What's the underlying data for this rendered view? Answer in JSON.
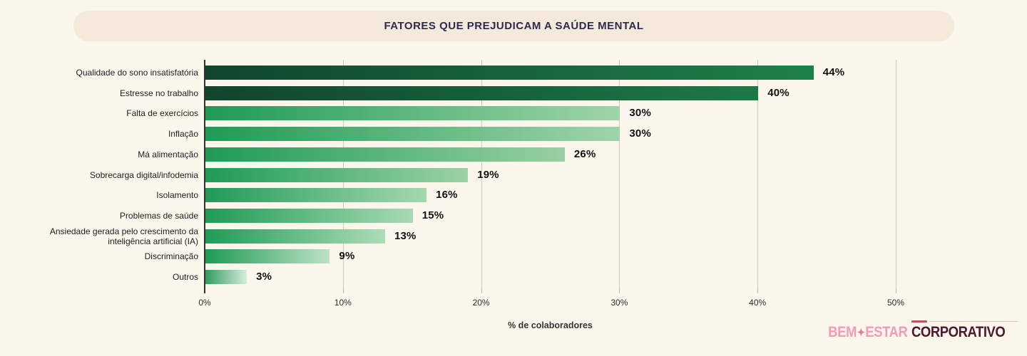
{
  "page": {
    "background": "#FBF7EC"
  },
  "header": {
    "title": "FATORES QUE PREJUDICAM A SAÚDE MENTAL",
    "banner_bg": "#F4E9DA",
    "title_color": "#2E2A4F"
  },
  "chart_data": {
    "type": "bar",
    "orientation": "horizontal",
    "title": "FATORES QUE PREJUDICAM A SAÚDE MENTAL",
    "xlabel": "% de colaboradores",
    "xlim": [
      0,
      50
    ],
    "grid": "vertical",
    "value_suffix": "%",
    "xticks": [
      {
        "value": 0,
        "label": "0%"
      },
      {
        "value": 10,
        "label": "10%"
      },
      {
        "value": 20,
        "label": "20%"
      },
      {
        "value": 30,
        "label": "30%"
      },
      {
        "value": 40,
        "label": "40%"
      },
      {
        "value": 50,
        "label": "50%"
      }
    ],
    "categories": [
      "Qualidade do sono insatisfatória",
      "Estresse no trabalho",
      "Falta de exercícios",
      "Inflação",
      "Má alimentação",
      "Sobrecarga digital/infodemia",
      "Isolamento",
      "Problemas de saúde",
      "Ansiedade gerada pelo crescimento da inteligência artificial (IA)",
      "Discriminação",
      "Outros"
    ],
    "values": [
      44,
      40,
      30,
      30,
      26,
      19,
      16,
      15,
      13,
      9,
      3
    ],
    "items": [
      {
        "label": "Qualidade do sono insatisfatória",
        "value": 44,
        "value_label": "44%",
        "bar_start": "#11452F",
        "bar_end": "#1E8149"
      },
      {
        "label": "Estresse no trabalho",
        "value": 40,
        "value_label": "40%",
        "bar_start": "#11452F",
        "bar_end": "#1C7A45"
      },
      {
        "label": "Falta de exercícios",
        "value": 30,
        "value_label": "30%",
        "bar_start": "#1F9B57",
        "bar_end": "#9FD4A9"
      },
      {
        "label": "Inflação",
        "value": 30,
        "value_label": "30%",
        "bar_start": "#1F9B57",
        "bar_end": "#9FD4A9"
      },
      {
        "label": "Má alimentação",
        "value": 26,
        "value_label": "26%",
        "bar_start": "#1F9B57",
        "bar_end": "#97D0A3"
      },
      {
        "label": "Sobrecarga digital/infodemia",
        "value": 19,
        "value_label": "19%",
        "bar_start": "#1F9B57",
        "bar_end": "#9BD2A6"
      },
      {
        "label": "Isolamento",
        "value": 16,
        "value_label": "16%",
        "bar_start": "#1F9B57",
        "bar_end": "#A5D8AF"
      },
      {
        "label": "Problemas de saúde",
        "value": 15,
        "value_label": "15%",
        "bar_start": "#1F9B57",
        "bar_end": "#A9DAB3"
      },
      {
        "label": "Ansiedade gerada pelo crescimento da inteligência artificial (IA)",
        "value": 13,
        "value_label": "13%",
        "bar_start": "#1F9B57",
        "bar_end": "#ADDCB7"
      },
      {
        "label": "Discriminação",
        "value": 9,
        "value_label": "9%",
        "bar_start": "#1F9B57",
        "bar_end": "#BCE2C4"
      },
      {
        "label": "Outros",
        "value": 3,
        "value_label": "3%",
        "bar_start": "#2E9C5E",
        "bar_end": "#D7EDDC"
      }
    ],
    "colors": {
      "dark_bar_start": "#11452F",
      "dark_bar_end": "#1E8149",
      "light_bar_start": "#1F9B57",
      "light_bar_end": "#A5D8AF",
      "grid": "#CDCABF",
      "axis": "#2F2F2F"
    }
  },
  "logo": {
    "part1": "BEM",
    "separator_icon": "four-petal-flower",
    "part2": "ESTAR",
    "part3": "CORPORATIVO",
    "pink": "#F49BB5",
    "maroon": "#4D182E"
  }
}
